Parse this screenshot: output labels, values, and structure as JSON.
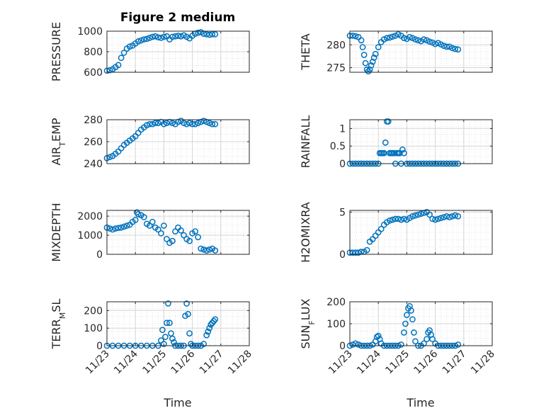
{
  "figure": {
    "title": "Figure 2 medium",
    "marker_color": "#0072BD",
    "xlabel": "Time",
    "xticks": [
      "11/23",
      "11/24",
      "11/25",
      "11/26",
      "11/27",
      "11/28"
    ]
  },
  "chart_data": [
    {
      "type": "scatter",
      "name": "PRESSURE",
      "ylabel": "PRESSURE",
      "ylim": [
        600,
        1000
      ],
      "yticks": [
        "600",
        "800",
        "1000"
      ],
      "ytick_values": [
        600,
        800,
        1000
      ],
      "xlim": [
        0,
        5
      ],
      "grid": true,
      "x": [
        0.0,
        0.1,
        0.2,
        0.3,
        0.4,
        0.5,
        0.6,
        0.7,
        0.8,
        0.9,
        1.0,
        1.1,
        1.2,
        1.3,
        1.4,
        1.5,
        1.6,
        1.7,
        1.8,
        1.9,
        2.0,
        2.1,
        2.2,
        2.3,
        2.4,
        2.5,
        2.6,
        2.7,
        2.8,
        2.9,
        3.0,
        3.1,
        3.2,
        3.3,
        3.4,
        3.5,
        3.6,
        3.7,
        3.8
      ],
      "y": [
        615,
        620,
        630,
        650,
        670,
        740,
        790,
        830,
        850,
        860,
        880,
        900,
        910,
        920,
        925,
        935,
        945,
        950,
        940,
        935,
        945,
        950,
        920,
        945,
        950,
        955,
        950,
        960,
        945,
        930,
        955,
        975,
        985,
        990,
        975,
        970,
        965,
        970,
        970
      ]
    },
    {
      "type": "scatter",
      "name": "THETA",
      "ylabel": "THETA",
      "ylim": [
        274,
        283
      ],
      "yticks": [
        "275",
        "280"
      ],
      "ytick_values": [
        275,
        280
      ],
      "xlim": [
        0,
        5
      ],
      "grid": true,
      "x": [
        0.0,
        0.1,
        0.2,
        0.3,
        0.4,
        0.45,
        0.5,
        0.55,
        0.6,
        0.65,
        0.7,
        0.75,
        0.8,
        0.85,
        0.9,
        1.0,
        1.1,
        1.2,
        1.3,
        1.4,
        1.5,
        1.6,
        1.7,
        1.8,
        1.9,
        2.0,
        2.1,
        2.2,
        2.3,
        2.4,
        2.5,
        2.6,
        2.7,
        2.8,
        2.9,
        3.0,
        3.1,
        3.2,
        3.3,
        3.4,
        3.5,
        3.6,
        3.7,
        3.8
      ],
      "y": [
        282.0,
        282.0,
        281.9,
        281.7,
        281.0,
        279.5,
        277.8,
        276.0,
        274.6,
        274.2,
        274.6,
        275.5,
        276.3,
        277.2,
        278.0,
        279.5,
        280.6,
        281.2,
        281.5,
        281.6,
        281.8,
        282.0,
        282.3,
        282.0,
        281.5,
        281.3,
        281.7,
        281.5,
        281.2,
        281.0,
        280.8,
        281.2,
        281.0,
        280.7,
        280.5,
        280.2,
        280.4,
        280.1,
        279.8,
        279.6,
        279.6,
        279.3,
        279.1,
        279.0
      ]
    },
    {
      "type": "scatter",
      "name": "AIR_TEMP",
      "ylabel": "AIR_TEMP",
      "ylim": [
        240,
        280
      ],
      "yticks": [
        "240",
        "260",
        "280"
      ],
      "ytick_values": [
        240,
        260,
        280
      ],
      "xlim": [
        0,
        5
      ],
      "grid": true,
      "x": [
        0.0,
        0.1,
        0.2,
        0.3,
        0.4,
        0.5,
        0.6,
        0.7,
        0.8,
        0.9,
        1.0,
        1.1,
        1.2,
        1.3,
        1.4,
        1.5,
        1.6,
        1.7,
        1.8,
        1.9,
        2.0,
        2.1,
        2.2,
        2.3,
        2.4,
        2.5,
        2.6,
        2.7,
        2.8,
        2.9,
        3.0,
        3.1,
        3.2,
        3.3,
        3.4,
        3.5,
        3.6,
        3.7,
        3.8
      ],
      "y": [
        245,
        246,
        247,
        249,
        251,
        254,
        257,
        259,
        261,
        263,
        265,
        268,
        271,
        273,
        275,
        276,
        276,
        277,
        277,
        278,
        276,
        277,
        278,
        277,
        276,
        278,
        279,
        277,
        276,
        277,
        276,
        276,
        277,
        278,
        279,
        278,
        277,
        276,
        276
      ]
    },
    {
      "type": "scatter",
      "name": "RAINFALL",
      "ylabel": "RAINFALL",
      "ylim": [
        0,
        1.25
      ],
      "yticks": [
        "0",
        "0.5",
        "1"
      ],
      "ytick_values": [
        0,
        0.5,
        1
      ],
      "xlim": [
        0,
        5
      ],
      "grid": true,
      "x": [
        0.0,
        0.1,
        0.2,
        0.3,
        0.4,
        0.5,
        0.6,
        0.7,
        0.8,
        0.9,
        1.0,
        1.05,
        1.1,
        1.15,
        1.2,
        1.25,
        1.3,
        1.35,
        1.4,
        1.45,
        1.5,
        1.55,
        1.6,
        1.65,
        1.7,
        1.75,
        1.8,
        1.85,
        1.9,
        2.0,
        2.1,
        2.2,
        2.3,
        2.4,
        2.5,
        2.6,
        2.7,
        2.8,
        2.9,
        3.0,
        3.1,
        3.2,
        3.3,
        3.4,
        3.5,
        3.6,
        3.7,
        3.8
      ],
      "y": [
        0,
        0,
        0,
        0,
        0,
        0,
        0,
        0,
        0,
        0,
        0,
        0.3,
        0.3,
        0.3,
        0.3,
        0.6,
        1.2,
        1.2,
        0.3,
        0.3,
        0.3,
        0.3,
        0,
        0.3,
        0.3,
        0.3,
        0,
        0.4,
        0.3,
        0,
        0,
        0,
        0,
        0,
        0,
        0,
        0,
        0,
        0,
        0,
        0,
        0,
        0,
        0,
        0,
        0,
        0,
        0
      ]
    },
    {
      "type": "scatter",
      "name": "MIXDEPTH",
      "ylabel": "MIXDEPTH",
      "ylim": [
        0,
        2300
      ],
      "yticks": [
        "0",
        "1000",
        "2000"
      ],
      "ytick_values": [
        0,
        1000,
        2000
      ],
      "xlim": [
        0,
        5
      ],
      "grid": true,
      "x": [
        0.0,
        0.1,
        0.2,
        0.3,
        0.4,
        0.5,
        0.6,
        0.7,
        0.8,
        0.9,
        1.0,
        1.05,
        1.1,
        1.2,
        1.3,
        1.4,
        1.5,
        1.6,
        1.7,
        1.8,
        1.9,
        2.0,
        2.1,
        2.2,
        2.3,
        2.4,
        2.5,
        2.6,
        2.7,
        2.8,
        2.9,
        3.0,
        3.1,
        3.2,
        3.3,
        3.4,
        3.5,
        3.6,
        3.7,
        3.8
      ],
      "y": [
        1400,
        1350,
        1300,
        1350,
        1380,
        1400,
        1450,
        1500,
        1550,
        1700,
        1800,
        2200,
        2100,
        2050,
        1950,
        1600,
        1500,
        1700,
        1400,
        1300,
        1100,
        1500,
        800,
        600,
        700,
        1200,
        1400,
        1250,
        1000,
        800,
        700,
        1100,
        1200,
        900,
        300,
        250,
        200,
        250,
        300,
        200
      ]
    },
    {
      "type": "scatter",
      "name": "H2OMIXRA",
      "ylabel": "H2OMIXRA",
      "ylim": [
        0,
        5.2
      ],
      "yticks": [
        "0",
        "5"
      ],
      "ytick_values": [
        0,
        5
      ],
      "xlim": [
        0,
        5
      ],
      "grid": true,
      "x": [
        0.0,
        0.1,
        0.2,
        0.3,
        0.4,
        0.5,
        0.6,
        0.7,
        0.8,
        0.9,
        1.0,
        1.1,
        1.2,
        1.3,
        1.4,
        1.5,
        1.6,
        1.7,
        1.8,
        1.9,
        2.0,
        2.1,
        2.2,
        2.3,
        2.4,
        2.5,
        2.6,
        2.7,
        2.8,
        2.9,
        3.0,
        3.1,
        3.2,
        3.3,
        3.4,
        3.5,
        3.6,
        3.7,
        3.8
      ],
      "y": [
        0.2,
        0.2,
        0.2,
        0.2,
        0.3,
        0.3,
        0.5,
        1.5,
        1.8,
        2.2,
        2.6,
        3.0,
        3.5,
        3.8,
        4.0,
        4.1,
        4.2,
        4.2,
        4.1,
        4.2,
        4.1,
        4.3,
        4.5,
        4.6,
        4.7,
        4.8,
        4.9,
        5.0,
        4.7,
        4.2,
        4.1,
        4.2,
        4.3,
        4.4,
        4.5,
        4.4,
        4.5,
        4.6,
        4.5
      ]
    },
    {
      "type": "scatter",
      "name": "TERR_MSL",
      "ylabel": "TERR_MSL",
      "ylim": [
        0,
        250
      ],
      "yticks": [
        "0",
        "100",
        "200"
      ],
      "ytick_values": [
        0,
        100,
        200
      ],
      "xlim": [
        0,
        5
      ],
      "grid": true,
      "x": [
        0.0,
        0.2,
        0.4,
        0.6,
        0.8,
        1.0,
        1.2,
        1.4,
        1.6,
        1.8,
        1.9,
        1.95,
        2.0,
        2.05,
        2.1,
        2.15,
        2.2,
        2.25,
        2.3,
        2.35,
        2.4,
        2.5,
        2.6,
        2.7,
        2.75,
        2.8,
        2.85,
        2.9,
        2.95,
        3.0,
        3.1,
        3.2,
        3.3,
        3.4,
        3.5,
        3.55,
        3.6,
        3.65,
        3.7,
        3.75,
        3.8
      ],
      "y": [
        0,
        0,
        0,
        0,
        0,
        0,
        0,
        0,
        0,
        0,
        30,
        90,
        10,
        50,
        130,
        240,
        130,
        70,
        40,
        20,
        0,
        0,
        0,
        0,
        170,
        240,
        180,
        70,
        10,
        0,
        0,
        0,
        0,
        10,
        60,
        80,
        100,
        120,
        130,
        140,
        150
      ]
    },
    {
      "type": "scatter",
      "name": "SUN_FLUX",
      "ylabel": "SUN_FLUX",
      "ylim": [
        0,
        200
      ],
      "yticks": [
        "0",
        "100",
        "200"
      ],
      "ytick_values": [
        0,
        100,
        200
      ],
      "xlim": [
        0,
        5
      ],
      "grid": true,
      "x": [
        0.0,
        0.1,
        0.2,
        0.3,
        0.4,
        0.5,
        0.6,
        0.7,
        0.8,
        0.9,
        0.95,
        1.0,
        1.05,
        1.1,
        1.2,
        1.3,
        1.4,
        1.5,
        1.6,
        1.7,
        1.8,
        1.9,
        1.95,
        2.0,
        2.05,
        2.1,
        2.15,
        2.2,
        2.25,
        2.3,
        2.4,
        2.5,
        2.6,
        2.7,
        2.75,
        2.8,
        2.85,
        2.9,
        3.0,
        3.1,
        3.2,
        3.3,
        3.4,
        3.5,
        3.6,
        3.7,
        3.8
      ],
      "y": [
        0,
        5,
        10,
        5,
        0,
        0,
        0,
        0,
        5,
        20,
        40,
        45,
        30,
        10,
        0,
        0,
        0,
        0,
        0,
        0,
        5,
        60,
        100,
        140,
        170,
        180,
        160,
        120,
        60,
        20,
        0,
        0,
        10,
        30,
        60,
        70,
        50,
        30,
        10,
        0,
        0,
        0,
        0,
        0,
        0,
        0,
        5
      ]
    }
  ]
}
